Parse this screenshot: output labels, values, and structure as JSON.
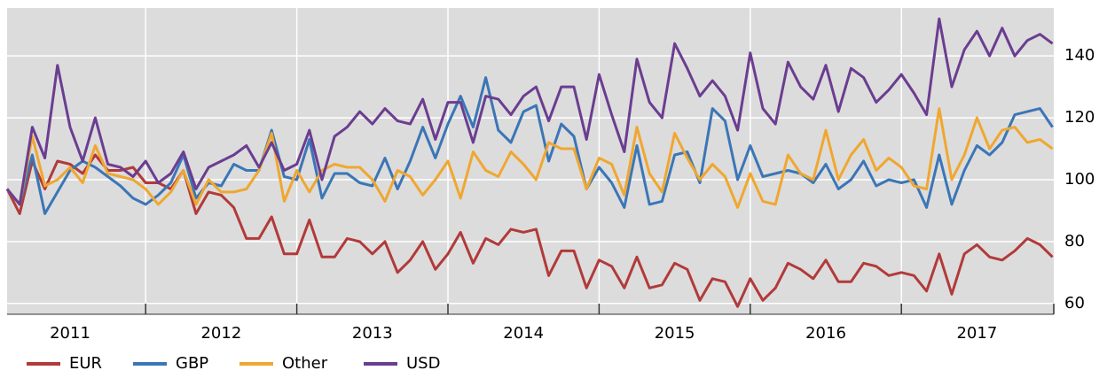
{
  "chart_data": {
    "type": "line",
    "categories": [
      null,
      null,
      null,
      null,
      null,
      "2011",
      null,
      null,
      null,
      null,
      null,
      null,
      null,
      null,
      null,
      null,
      null,
      "2012",
      null,
      null,
      null,
      null,
      null,
      null,
      null,
      null,
      null,
      null,
      null,
      "2013",
      null,
      null,
      null,
      null,
      null,
      null,
      null,
      null,
      null,
      null,
      null,
      "2014",
      null,
      null,
      null,
      null,
      null,
      null,
      null,
      null,
      null,
      null,
      null,
      "2015",
      null,
      null,
      null,
      null,
      null,
      null,
      null,
      null,
      null,
      null,
      null,
      "2016",
      null,
      null,
      null,
      null,
      null,
      null,
      null,
      null,
      null,
      null,
      null,
      "2017",
      null,
      null,
      null,
      null,
      null,
      null
    ],
    "series": [
      {
        "name": "EUR",
        "color": "#b23a3a",
        "values": [
          97,
          89,
          106,
          97,
          106,
          105,
          102,
          108,
          103,
          103,
          104,
          99,
          99,
          97,
          103,
          89,
          96,
          95,
          91,
          81,
          81,
          88,
          76,
          76,
          87,
          75,
          75,
          81,
          80,
          76,
          80,
          70,
          74,
          80,
          71,
          76,
          83,
          73,
          81,
          79,
          84,
          83,
          84,
          69,
          77,
          77,
          65,
          74,
          72,
          65,
          75,
          65,
          66,
          73,
          71,
          61,
          68,
          67,
          59,
          68,
          61,
          65,
          73,
          71,
          68,
          74,
          67,
          67,
          73,
          72,
          69,
          70,
          69,
          64,
          76,
          63,
          76,
          79,
          75,
          74,
          77,
          81,
          79,
          75
        ]
      },
      {
        "name": "GBP",
        "color": "#3b76b6",
        "values": [
          97,
          92,
          108,
          89,
          96,
          103,
          106,
          104,
          101,
          98,
          94,
          92,
          95,
          99,
          108,
          94,
          99,
          98,
          105,
          103,
          103,
          116,
          101,
          100,
          113,
          94,
          102,
          102,
          99,
          98,
          107,
          97,
          106,
          117,
          107,
          118,
          127,
          117,
          133,
          116,
          112,
          122,
          124,
          106,
          118,
          114,
          97,
          104,
          99,
          91,
          111,
          92,
          93,
          108,
          109,
          99,
          123,
          119,
          100,
          111,
          101,
          102,
          103,
          102,
          99,
          105,
          97,
          100,
          106,
          98,
          100,
          99,
          100,
          91,
          108,
          92,
          103,
          111,
          108,
          112,
          121,
          122,
          123,
          117
        ]
      },
      {
        "name": "Other",
        "color": "#f0a730",
        "values": [
          97,
          92,
          114,
          98,
          100,
          104,
          99,
          111,
          102,
          101,
          100,
          97,
          92,
          96,
          103,
          92,
          100,
          96,
          96,
          97,
          103,
          115,
          93,
          103,
          96,
          103,
          105,
          104,
          104,
          100,
          93,
          103,
          101,
          95,
          100,
          106,
          94,
          109,
          103,
          101,
          109,
          105,
          100,
          112,
          110,
          110,
          97,
          107,
          105,
          95,
          117,
          102,
          96,
          115,
          107,
          100,
          105,
          101,
          91,
          102,
          93,
          92,
          108,
          102,
          100,
          116,
          100,
          108,
          113,
          103,
          107,
          104,
          98,
          97,
          123,
          100,
          108,
          120,
          110,
          116,
          117,
          112,
          113,
          110
        ]
      },
      {
        "name": "USD",
        "color": "#6b3d90",
        "values": [
          97,
          92,
          117,
          107,
          137,
          117,
          106,
          120,
          105,
          104,
          101,
          106,
          99,
          102,
          109,
          97,
          104,
          106,
          108,
          111,
          104,
          112,
          103,
          105,
          116,
          100,
          114,
          117,
          122,
          118,
          123,
          119,
          118,
          126,
          113,
          125,
          125,
          112,
          127,
          126,
          121,
          127,
          130,
          119,
          130,
          130,
          113,
          134,
          121,
          109,
          139,
          125,
          120,
          144,
          136,
          127,
          132,
          127,
          116,
          141,
          123,
          118,
          138,
          130,
          126,
          137,
          122,
          136,
          133,
          125,
          129,
          134,
          128,
          121,
          152,
          130,
          142,
          148,
          140,
          149,
          140,
          145,
          147,
          144
        ]
      }
    ],
    "ylim": [
      56.5,
      155.5
    ],
    "yticks": [
      60,
      80,
      100,
      120,
      140
    ],
    "grid": true,
    "legend": "bottom"
  }
}
